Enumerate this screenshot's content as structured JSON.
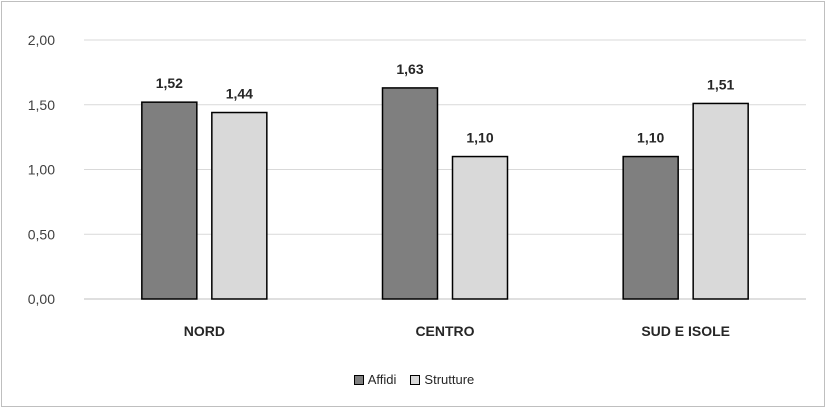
{
  "chart_data": {
    "type": "bar",
    "categories": [
      "NORD",
      "CENTRO",
      "SUD E ISOLE"
    ],
    "series": [
      {
        "name": "Affidi",
        "values": [
          1.52,
          1.63,
          1.1
        ],
        "labels": [
          "1,52",
          "1,63",
          "1,10"
        ],
        "color": "#7f7f7f"
      },
      {
        "name": "Strutture",
        "values": [
          1.44,
          1.1,
          1.51
        ],
        "labels": [
          "1,44",
          "1,10",
          "1,51"
        ],
        "color": "#d9d9d9"
      }
    ],
    "ylim": [
      0,
      2
    ],
    "yticks": [
      0,
      0.5,
      1,
      1.5,
      2
    ],
    "ytick_labels": [
      "0,00",
      "0,50",
      "1,00",
      "1,50",
      "2,00"
    ],
    "grid": true,
    "legend_position": "bottom",
    "title": "",
    "xlabel": "",
    "ylabel": ""
  }
}
